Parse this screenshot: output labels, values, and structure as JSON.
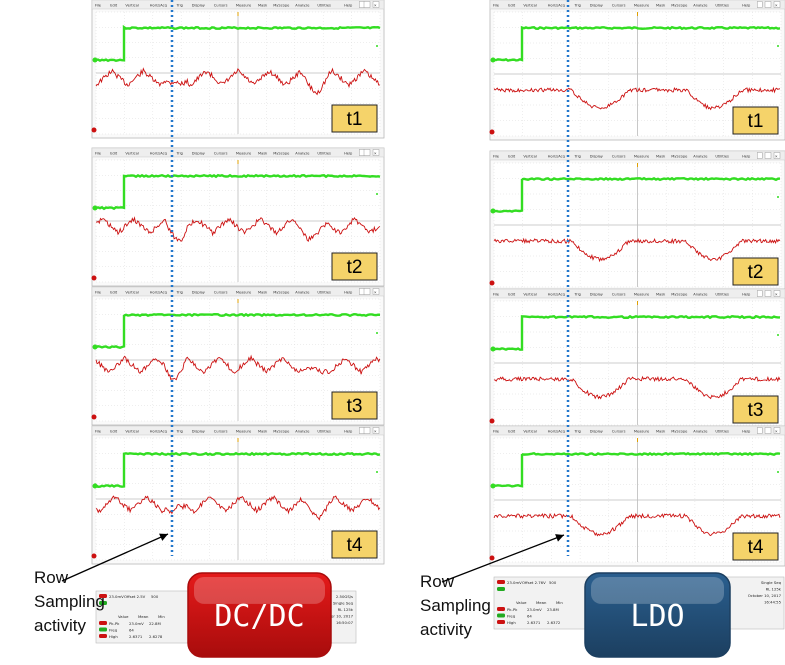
{
  "menu": [
    "File",
    "Edit",
    "Vertical",
    "Horiz/Acq",
    "Trig",
    "Display",
    "Cursors",
    "Measure",
    "Mask",
    "MyScope",
    "Analyze",
    "Utilities",
    "Help"
  ],
  "dcdc": {
    "button_label": "DC/DC",
    "labels": [
      "t1",
      "t2",
      "t3",
      "t4"
    ],
    "status": {
      "ch1": "23.0mV",
      "offset": "Offset 2.5V",
      "bw": "500",
      "readouts": [
        "2.50GS/s",
        "Single Seq",
        "RL 125k",
        "October 10, 2017",
        "16:50:07"
      ],
      "table_headers": [
        "Value",
        "Mean",
        "Min"
      ],
      "table_rows": [
        [
          "Pk-Pk",
          "23.0mV",
          "22.8M"
        ],
        [
          "Freq",
          "64",
          ""
        ],
        [
          "High",
          "2.6371",
          "2.6278"
        ]
      ]
    }
  },
  "ldo": {
    "button_label": "LDO",
    "labels": [
      "t1",
      "t2",
      "t3",
      "t4"
    ],
    "status": {
      "ch1": "23.0mV",
      "offset": "Offset 2.76V",
      "bw": "500",
      "readouts": [
        "Single Seq",
        "RL 125k",
        "October 10, 2017",
        "16:44:55"
      ],
      "table_headers": [
        "Value",
        "Mean",
        "Min"
      ],
      "table_rows": [
        [
          "Pk-Pk",
          "23.0mV",
          "23.8M"
        ],
        [
          "Freq",
          "64",
          ""
        ],
        [
          "High",
          "2.6371",
          "2.6372"
        ]
      ]
    }
  },
  "annotations": {
    "left": [
      "Row",
      "Sampling",
      "activity"
    ],
    "right": [
      "Row",
      "Sampling",
      "activity"
    ]
  },
  "colors": {
    "green_trace": "#33dd22",
    "red_trace": "#cc1111",
    "dashed_line": "#2277cc",
    "label_box": "#f5d36a",
    "dcdc_button": "#e51a1a",
    "ldo_button": "#2a5f8f"
  }
}
